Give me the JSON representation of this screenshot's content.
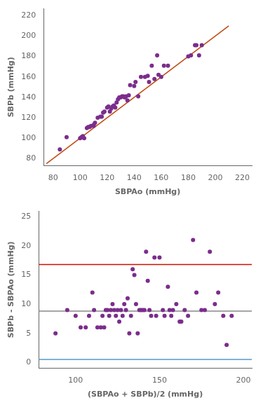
{
  "chart_data": [
    {
      "type": "scatter",
      "xlabel": "SBPAo (mmHg)",
      "ylabel": "SBPb (mmHg)",
      "xlim": [
        73,
        227
      ],
      "ylim": [
        73,
        227
      ],
      "xticks": [
        80,
        100,
        120,
        140,
        160,
        180,
        200,
        220
      ],
      "yticks": [
        80,
        100,
        120,
        140,
        160,
        180,
        200,
        220
      ],
      "grid": false,
      "series": [
        {
          "type": "scatter",
          "color": "#7B2D8B",
          "x": [
            85,
            90,
            100,
            101,
            102,
            103,
            105,
            106,
            107,
            108,
            110,
            110,
            111,
            113,
            115,
            116,
            117,
            118,
            120,
            121,
            122,
            123,
            124,
            125,
            126,
            127,
            128,
            129,
            130,
            131,
            132,
            133,
            134,
            135,
            136,
            137,
            140,
            141,
            143,
            145,
            148,
            150,
            151,
            153,
            155,
            157,
            158,
            160,
            162,
            165,
            180,
            182,
            185,
            186,
            188,
            190
          ],
          "values": [
            89,
            101,
            100,
            101,
            102,
            100,
            110,
            111,
            111,
            112,
            112,
            113,
            115,
            120,
            121,
            121,
            125,
            126,
            130,
            131,
            126,
            129,
            131,
            132,
            130,
            135,
            138,
            140,
            140,
            141,
            141,
            140,
            141,
            137,
            142,
            152,
            151,
            155,
            141,
            160,
            160,
            161,
            155,
            171,
            158,
            181,
            162,
            160,
            171,
            171,
            180,
            181,
            191,
            191,
            181,
            191
          ]
        },
        {
          "type": "line",
          "color": "#C04A10",
          "x": [
            75,
            210
          ],
          "values": [
            75,
            210
          ]
        }
      ]
    },
    {
      "type": "scatter",
      "xlabel": "(SBPAo + SBPb)/2 (mmHg)",
      "ylabel": "SBPb - SBPAo (mmHg)",
      "xlim": [
        78,
        205
      ],
      "ylim": [
        -1,
        26
      ],
      "xticks": [
        100,
        150,
        200
      ],
      "yticks": [
        0,
        5,
        10,
        15,
        20,
        25
      ],
      "grid": false,
      "series": [
        {
          "type": "scatter",
          "color": "#7B2D8B",
          "x": [
            88,
            95,
            100,
            103,
            106,
            108,
            110,
            111,
            113,
            115,
            116,
            117,
            118,
            119,
            120,
            121,
            122,
            123,
            124,
            125,
            126,
            127,
            128,
            129,
            130,
            131,
            132,
            133,
            134,
            135,
            136,
            137,
            138,
            139,
            140,
            141,
            142,
            143,
            144,
            145,
            147,
            148,
            150,
            152,
            153,
            155,
            156,
            157,
            158,
            160,
            162,
            163,
            165,
            167,
            170,
            172,
            175,
            177,
            180,
            183,
            185,
            188,
            190,
            193
          ],
          "values": [
            5,
            9,
            8,
            6,
            6,
            8,
            12,
            9,
            6,
            6,
            8,
            6,
            9,
            9,
            8,
            9,
            10,
            9,
            8,
            9,
            7,
            9,
            8,
            10,
            9,
            11,
            5,
            8,
            16,
            15,
            10,
            5,
            9,
            9,
            9,
            9,
            19,
            14,
            9,
            8,
            18,
            8,
            18,
            9,
            8,
            13,
            9,
            8,
            9,
            10,
            7,
            7,
            9,
            8,
            21,
            12,
            9,
            9,
            19,
            10,
            12,
            8,
            3,
            8
          ]
        },
        {
          "type": "hline",
          "color": "#CC1100",
          "values": [
            16.8
          ]
        },
        {
          "type": "hline",
          "color": "#888888",
          "values": [
            8.8
          ]
        },
        {
          "type": "hline",
          "color": "#5599CC",
          "values": [
            0.5
          ]
        }
      ]
    }
  ]
}
